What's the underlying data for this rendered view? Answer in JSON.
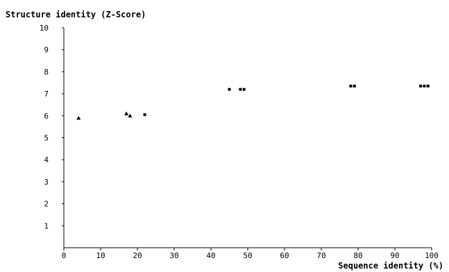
{
  "chart_data": {
    "type": "scatter",
    "title": "",
    "ylabel": "Structure identity (Z-Score)",
    "xlabel": "Sequence identity (%)",
    "xlim": [
      0,
      100
    ],
    "ylim": [
      0,
      10
    ],
    "x_ticks": [
      0,
      10,
      20,
      30,
      40,
      50,
      60,
      70,
      80,
      90,
      100
    ],
    "y_ticks": [
      1,
      2,
      3,
      4,
      5,
      6,
      7,
      8,
      9,
      10
    ],
    "grid": false,
    "legend": "none",
    "color": "#000000",
    "series": [
      {
        "marker": "triangle",
        "points": [
          {
            "x": 4,
            "y": 5.9
          },
          {
            "x": 17,
            "y": 6.1
          },
          {
            "x": 18,
            "y": 6.0
          }
        ]
      },
      {
        "marker": "square",
        "points": [
          {
            "x": 22,
            "y": 6.05
          },
          {
            "x": 45,
            "y": 7.2
          },
          {
            "x": 48,
            "y": 7.2
          },
          {
            "x": 49,
            "y": 7.2
          },
          {
            "x": 78,
            "y": 7.35
          },
          {
            "x": 79,
            "y": 7.35
          },
          {
            "x": 97,
            "y": 7.35
          },
          {
            "x": 98,
            "y": 7.35
          },
          {
            "x": 99,
            "y": 7.35
          }
        ]
      }
    ]
  }
}
